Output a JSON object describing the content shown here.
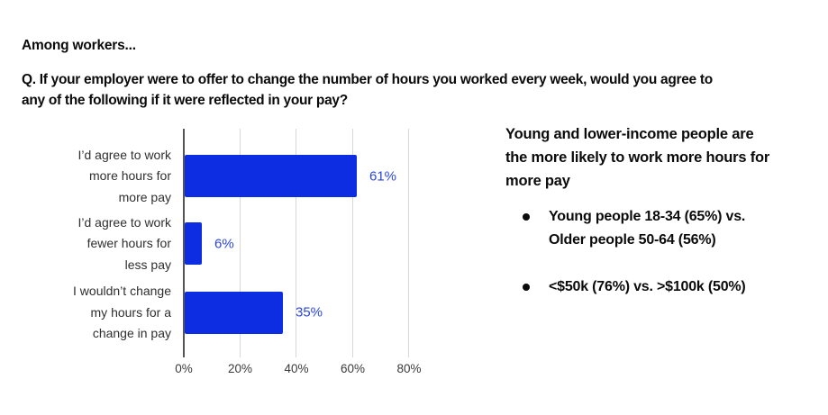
{
  "header": {
    "among": "Among workers...",
    "question_lines": [
      "Q. If your employer were to offer to change the number of hours you worked every week, would you agree to",
      "any of the following if it were reflected in your pay?"
    ]
  },
  "chart_data": {
    "type": "bar",
    "orientation": "horizontal",
    "categories": [
      "I’d agree to work more hours for more pay",
      "I’d agree to work fewer hours for less pay",
      "I wouldn’t change my hours for a change in pay"
    ],
    "category_lines": [
      [
        "I’d agree to work",
        "more hours for",
        "more pay"
      ],
      [
        "I’d agree to work",
        "fewer hours for",
        "less pay"
      ],
      [
        "I wouldn’t change",
        "my hours for a",
        "change in pay"
      ]
    ],
    "values": [
      61,
      6,
      35
    ],
    "value_labels": [
      "61%",
      "6%",
      "35%"
    ],
    "xlim": [
      0,
      80
    ],
    "x_ticks": [
      0,
      20,
      40,
      60,
      80
    ],
    "x_tick_labels": [
      "0%",
      "20%",
      "40%",
      "60%",
      "80%"
    ],
    "grid": true,
    "bar_color": "#0c2de1",
    "value_label_color": "#2b47d9",
    "title": "",
    "xlabel": "",
    "ylabel": ""
  },
  "insights": {
    "title": "Young and lower-income people are the more likely to work more hours for more pay",
    "title_lines": [
      "Young and lower-income people are",
      "the more likely to work more hours for",
      "more pay"
    ],
    "bullets": [
      {
        "lines": [
          "Young people 18-34 (65%) vs.",
          "Older people 50-64 (56%)"
        ]
      },
      {
        "lines": [
          "<$50k (76%) vs. >$100k (50%)"
        ]
      }
    ]
  }
}
